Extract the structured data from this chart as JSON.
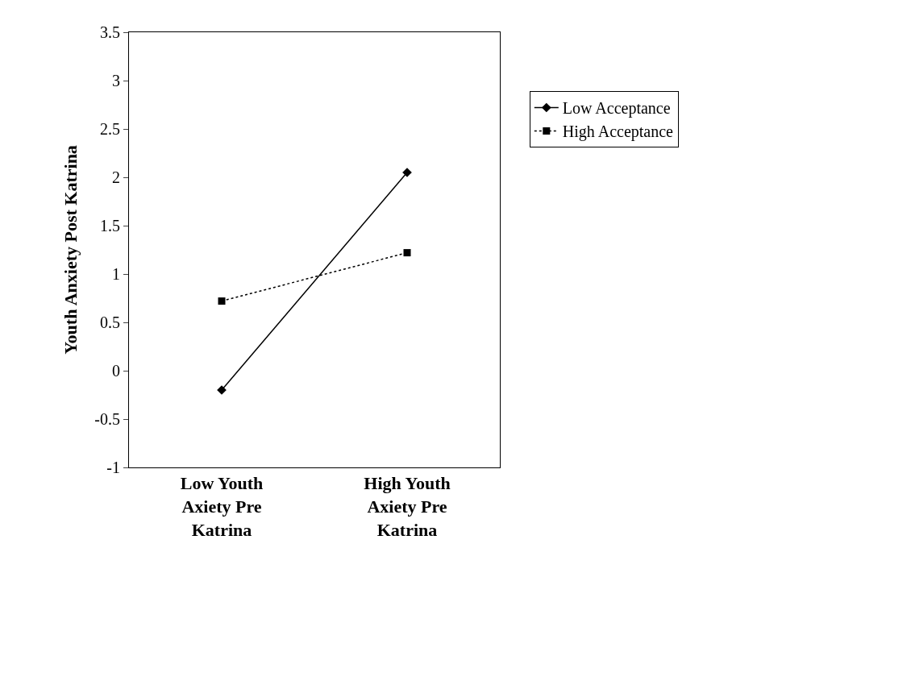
{
  "chart_data": {
    "type": "line",
    "ylabel": "Youth Anxiety Post Katrina",
    "categories": [
      "Low Youth\nAxiety Pre\nKatrina",
      "High Youth\nAxiety Pre\nKatrina"
    ],
    "series": [
      {
        "name": "Low Acceptance",
        "color": "#000000",
        "values": [
          -0.2,
          2.05
        ],
        "marker": "diamond",
        "line_style": "solid"
      },
      {
        "name": "High Acceptance",
        "color": "#000000",
        "values": [
          0.72,
          1.22
        ],
        "marker": "square",
        "line_style": "dotted"
      }
    ],
    "ylim": [
      -1,
      3.5
    ],
    "yticks": [
      -1,
      -0.5,
      0,
      0.5,
      1,
      1.5,
      2,
      2.5,
      3,
      3.5
    ],
    "grid": false,
    "legend": "right"
  }
}
